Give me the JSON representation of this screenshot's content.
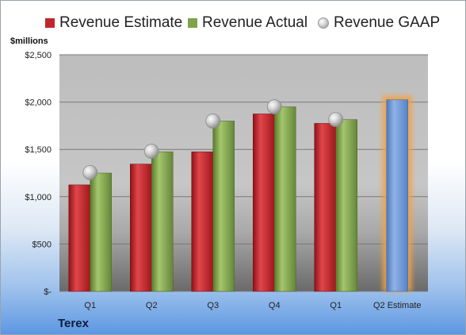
{
  "unit_label": "$millions",
  "company": "Terex",
  "colors": {
    "estimate": "#c0272d",
    "actual": "#7fa34a",
    "gaap": "#bdbdbd",
    "estimate_future": "#6f9ad6"
  },
  "chart_data": {
    "type": "bar",
    "categories": [
      "Q1",
      "Q2",
      "Q3",
      "Q4",
      "Q1",
      "Q2 Estimate"
    ],
    "series": [
      {
        "name": "Revenue Estimate",
        "values": [
          1125,
          1345,
          1475,
          1875,
          1775,
          2025
        ]
      },
      {
        "name": "Revenue Actual",
        "values": [
          1250,
          1475,
          1800,
          1950,
          1815,
          null
        ]
      },
      {
        "name": "Revenue GAAP",
        "values": [
          1255,
          1480,
          1800,
          1950,
          1815,
          null
        ]
      }
    ],
    "yticks": [
      "$-",
      "$500",
      "$1,000",
      "$1,500",
      "$2,000",
      "$2,500"
    ],
    "ylim": [
      0,
      2500
    ],
    "legend_position": "top",
    "grid": true
  }
}
